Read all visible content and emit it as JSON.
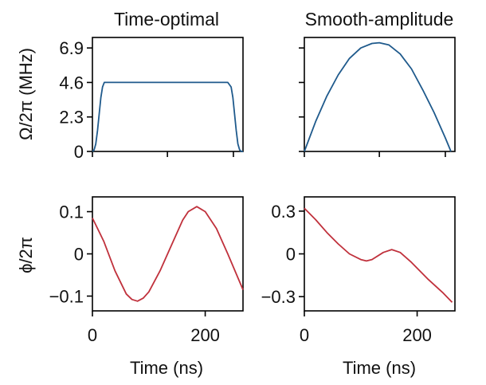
{
  "colors": {
    "amplitude": "#1f5a8c",
    "phase": "#c0313c",
    "axis": "#000000"
  },
  "chart_data": [
    {
      "type": "line",
      "title": "Time-optimal",
      "xlabel": "",
      "ylabel": "Ω/2π (MHz)",
      "xlim": [
        0,
        267
      ],
      "ylim": [
        0,
        7.6
      ],
      "x_ticks": [
        0,
        133,
        250
      ],
      "y_ticks": [
        0,
        2.3,
        4.6,
        6.9
      ],
      "y_tick_labels": [
        "0",
        "2.3",
        "4.6",
        "6.9"
      ],
      "series": [
        {
          "x": [
            0,
            3,
            6,
            9,
            12,
            15,
            18,
            21,
            50,
            100,
            150,
            200,
            240,
            246,
            249,
            252,
            255,
            258,
            261,
            264,
            267
          ],
          "y": [
            0,
            0.1,
            0.5,
            1.4,
            2.5,
            3.6,
            4.3,
            4.6,
            4.6,
            4.6,
            4.6,
            4.6,
            4.6,
            4.3,
            3.6,
            2.5,
            1.4,
            0.5,
            0.1,
            0,
            0
          ]
        }
      ]
    },
    {
      "type": "line",
      "title": "Smooth-amplitude",
      "xlabel": "",
      "ylabel": "",
      "xlim": [
        0,
        267
      ],
      "ylim": [
        0,
        7.6
      ],
      "x_ticks": [
        0,
        133,
        250
      ],
      "y_ticks": [
        0,
        2.3,
        4.6,
        6.9
      ],
      "series": [
        {
          "x": [
            0,
            20,
            40,
            60,
            80,
            100,
            120,
            133,
            150,
            170,
            190,
            210,
            230,
            250,
            260
          ],
          "y": [
            0,
            2.0,
            3.7,
            5.1,
            6.2,
            6.9,
            7.2,
            7.25,
            7.1,
            6.5,
            5.5,
            4.1,
            2.6,
            0.9,
            0
          ]
        }
      ]
    },
    {
      "type": "line",
      "title": "",
      "xlabel": "Time (ns)",
      "ylabel": "ϕ/2π",
      "xlim": [
        0,
        267
      ],
      "ylim": [
        -0.135,
        0.135
      ],
      "x_ticks": [
        0,
        200
      ],
      "x_tick_labels": [
        "0",
        "200"
      ],
      "y_ticks": [
        0.1,
        0,
        -0.1
      ],
      "y_tick_labels": [
        "0.1",
        "0",
        "−0.1"
      ],
      "series": [
        {
          "x": [
            0,
            20,
            40,
            60,
            70,
            80,
            90,
            100,
            120,
            140,
            160,
            170,
            185,
            200,
            220,
            240,
            267
          ],
          "y": [
            0.085,
            0.03,
            -0.04,
            -0.095,
            -0.108,
            -0.112,
            -0.105,
            -0.09,
            -0.04,
            0.02,
            0.08,
            0.1,
            0.112,
            0.1,
            0.06,
            0.0,
            -0.085
          ]
        }
      ]
    },
    {
      "type": "line",
      "title": "",
      "xlabel": "Time (ns)",
      "ylabel": "",
      "xlim": [
        0,
        267
      ],
      "ylim": [
        -0.4,
        0.4
      ],
      "x_ticks": [
        0,
        200
      ],
      "x_tick_labels": [
        "0",
        "200"
      ],
      "y_ticks": [
        0.3,
        0,
        -0.3
      ],
      "y_tick_labels": [
        "0.3",
        "0",
        "−0.3"
      ],
      "series": [
        {
          "x": [
            0,
            20,
            40,
            60,
            80,
            100,
            110,
            120,
            140,
            155,
            170,
            190,
            220,
            245,
            262
          ],
          "y": [
            0.32,
            0.24,
            0.15,
            0.07,
            0.0,
            -0.04,
            -0.05,
            -0.04,
            0.01,
            0.03,
            0.01,
            -0.06,
            -0.18,
            -0.27,
            -0.34
          ]
        }
      ]
    }
  ]
}
